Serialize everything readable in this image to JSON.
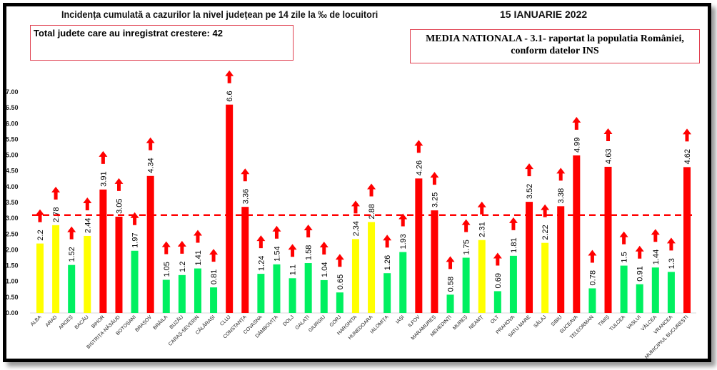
{
  "chart_data": {
    "type": "bar",
    "title": "Incidența cumulată a cazurilor la nivel județean pe 14 zile la ‰ de locuitori",
    "date": "15 IANUARIE 2022",
    "annotation_total": "Total judete care au inregistrat crestere: 42",
    "annotation_media": [
      "MEDIA NATIONALA - 3.1-  raportat la populatia României,",
      "conform datelor INS"
    ],
    "reference_line": 3.1,
    "ylim": [
      0,
      7
    ],
    "yticks": [
      "0.00",
      "0.50",
      "1.00",
      "1.50",
      "2.00",
      "2.50",
      "3.00",
      "3.50",
      "4.00",
      "4.50",
      "5.00",
      "5.50",
      "6.00",
      "6.50",
      "7.00"
    ],
    "xlabel": "",
    "ylabel": "",
    "colors": {
      "red": "#ff0000",
      "yellow": "#ffff00",
      "green": "#00f060",
      "line": "#ff0000",
      "arrow": "#ff0000"
    },
    "categories": [
      "ALBA",
      "ARAD",
      "ARGEȘ",
      "BACĂU",
      "BIHOR",
      "BISTRIȚA-NĂSĂUD",
      "BOTOȘANI",
      "BRAȘOV",
      "BRĂILA",
      "BUZĂU",
      "CARAȘ-SEVERIN",
      "CĂLĂRAȘI",
      "CLUJ",
      "CONSTANȚA",
      "COVASNA",
      "DÂMBOVIȚA",
      "DOLJ",
      "GALAȚI",
      "GIURGIU",
      "GORJ",
      "HARGHITA",
      "HUNEDOARA",
      "IALOMIȚA",
      "IAȘI",
      "ILFOV",
      "MARAMUREȘ",
      "MEHEDINȚI",
      "MUREȘ",
      "NEAMȚ",
      "OLT",
      "PRAHOVA",
      "SATU MARE",
      "SĂLAJ",
      "SIBIU",
      "SUCEAVA",
      "TELEORMAN",
      "TIMIȘ",
      "TULCEA",
      "VASLUI",
      "VÂLCEA",
      "VRANCEA",
      "MUNICIPIUL BUCUREȘTI"
    ],
    "values": [
      2.2,
      2.78,
      1.52,
      2.44,
      3.91,
      3.05,
      1.97,
      4.34,
      1.05,
      1.2,
      1.41,
      0.81,
      6.6,
      3.36,
      1.24,
      1.54,
      1.1,
      1.58,
      1.04,
      0.65,
      2.34,
      2.88,
      1.26,
      1.93,
      4.26,
      3.25,
      0.58,
      1.75,
      2.31,
      0.69,
      1.81,
      3.52,
      2.22,
      3.38,
      4.99,
      0.78,
      4.63,
      1.5,
      0.91,
      1.44,
      1.3,
      4.62
    ],
    "value_labels": [
      "2.2",
      "2.78",
      "1.52",
      "2.44",
      "3.91",
      "3.05",
      "1.97",
      "4.34",
      "1.05",
      "1.2",
      "1.41",
      "0.81",
      "6.6",
      "3.36",
      "1.24",
      "1.54",
      "1.1",
      "1.58",
      "1.04",
      "0.65",
      "2.34",
      "2.88",
      "1.26",
      "1.93",
      "4.26",
      "3.25",
      "0.58",
      "1.75",
      "2.31",
      "0.69",
      "1.81",
      "3.52",
      "2.22",
      "3.38",
      "4.99",
      "0.78",
      "4.63",
      "1.5",
      "0.91",
      "1.44",
      "1.3",
      "4.62"
    ],
    "bar_colors": [
      "yellow",
      "yellow",
      "green",
      "yellow",
      "red",
      "red",
      "green",
      "red",
      "green",
      "green",
      "green",
      "green",
      "red",
      "red",
      "green",
      "green",
      "green",
      "green",
      "green",
      "green",
      "yellow",
      "yellow",
      "green",
      "green",
      "red",
      "red",
      "green",
      "green",
      "yellow",
      "green",
      "green",
      "red",
      "yellow",
      "red",
      "red",
      "green",
      "red",
      "green",
      "green",
      "green",
      "green",
      "red"
    ],
    "trend": "up"
  }
}
